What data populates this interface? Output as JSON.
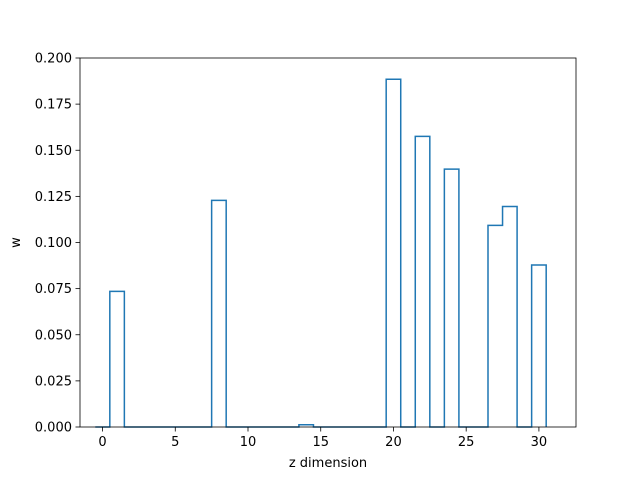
{
  "chart_data": {
    "type": "bar",
    "style": "step-histogram",
    "xlabel": "z dimension",
    "ylabel": "w",
    "xlim": [
      -1.55,
      32.55
    ],
    "ylim": [
      0,
      0.2
    ],
    "x_ticks": [
      0,
      5,
      10,
      15,
      20,
      25,
      30
    ],
    "x_tick_labels": [
      "0",
      "5",
      "10",
      "15",
      "20",
      "25",
      "30"
    ],
    "y_ticks": [
      0.0,
      0.025,
      0.05,
      0.075,
      0.1,
      0.125,
      0.15,
      0.175,
      0.2
    ],
    "y_tick_labels": [
      "0.000",
      "0.025",
      "0.050",
      "0.075",
      "0.100",
      "0.125",
      "0.150",
      "0.175",
      "0.200"
    ],
    "grid": false,
    "color": "#1f77b4",
    "x": [
      0,
      1,
      2,
      3,
      4,
      5,
      6,
      7,
      8,
      9,
      10,
      11,
      12,
      13,
      14,
      15,
      16,
      17,
      18,
      19,
      20,
      21,
      22,
      23,
      24,
      25,
      26,
      27,
      28,
      29,
      30
    ],
    "values": [
      0,
      0.0735,
      0,
      0,
      0,
      0,
      0,
      0,
      0.1228,
      0,
      0,
      0,
      0,
      0,
      0.0012,
      0,
      0,
      0,
      0,
      0,
      0.1885,
      0,
      0.1575,
      0,
      0.1398,
      0,
      0,
      0.1093,
      0.1195,
      0,
      0.0878
    ]
  }
}
